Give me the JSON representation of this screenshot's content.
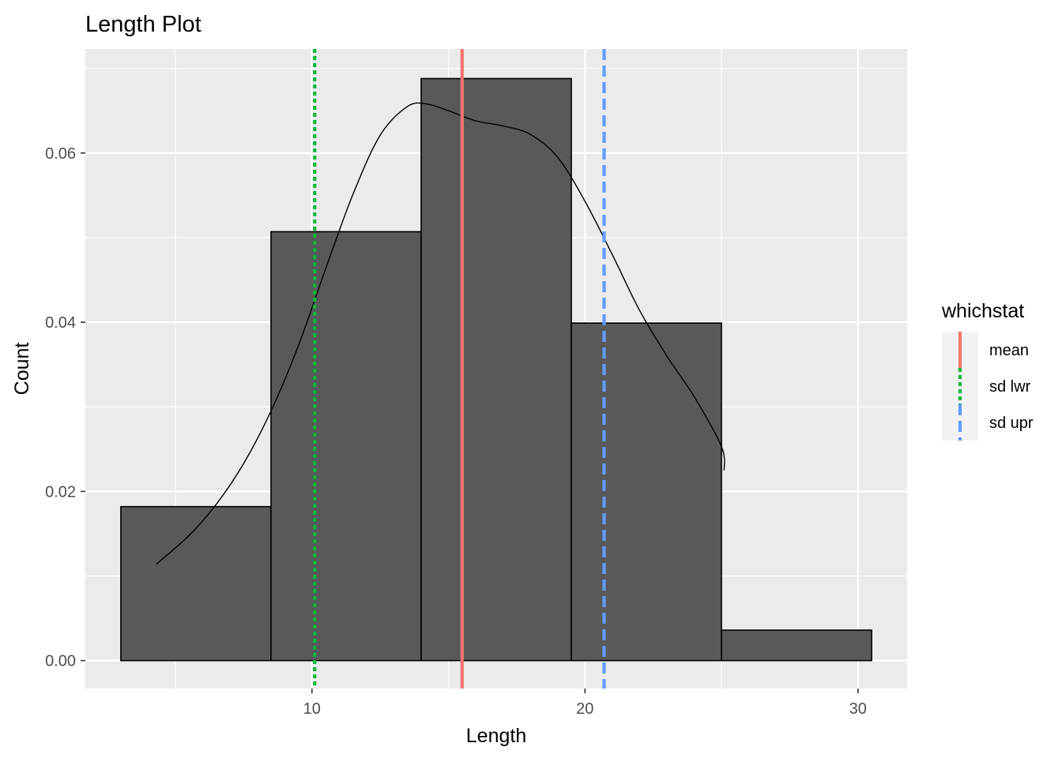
{
  "chart_data": {
    "type": "bar",
    "title": "Length Plot",
    "xlabel": "Length",
    "ylabel": "Count",
    "xlim": [
      1.7,
      31.8
    ],
    "ylim": [
      -0.0033,
      0.0723
    ],
    "x_ticks": [
      10,
      20,
      30
    ],
    "x_tick_labels": [
      "10",
      "20",
      "30"
    ],
    "y_ticks": [
      0.0,
      0.02,
      0.04,
      0.06
    ],
    "y_tick_labels": [
      "0.00",
      "0.02",
      "0.04",
      "0.06"
    ],
    "grid": true,
    "bins": [
      {
        "x0": 3.0,
        "x1": 8.5,
        "value": 0.0182
      },
      {
        "x0": 8.5,
        "x1": 14.0,
        "value": 0.0507
      },
      {
        "x0": 14.0,
        "x1": 19.5,
        "value": 0.0688
      },
      {
        "x0": 19.5,
        "x1": 25.0,
        "value": 0.0399
      },
      {
        "x0": 25.0,
        "x1": 30.5,
        "value": 0.0036
      }
    ],
    "bar_fill": "#595959",
    "bar_stroke": "#000000",
    "density_curve": [
      [
        4.3,
        0.0114
      ],
      [
        5.5,
        0.0148
      ],
      [
        6.5,
        0.0185
      ],
      [
        7.5,
        0.0233
      ],
      [
        8.5,
        0.0295
      ],
      [
        9.5,
        0.0372
      ],
      [
        10.5,
        0.0463
      ],
      [
        11.5,
        0.0551
      ],
      [
        12.5,
        0.0621
      ],
      [
        13.5,
        0.0655
      ],
      [
        14.2,
        0.0658
      ],
      [
        15.0,
        0.065
      ],
      [
        16.0,
        0.0638
      ],
      [
        17.0,
        0.0632
      ],
      [
        18.0,
        0.0622
      ],
      [
        19.0,
        0.0595
      ],
      [
        20.0,
        0.0543
      ],
      [
        21.0,
        0.048
      ],
      [
        22.0,
        0.0414
      ],
      [
        23.0,
        0.036
      ],
      [
        24.0,
        0.0312
      ],
      [
        25.0,
        0.0253
      ],
      [
        25.1,
        0.0225
      ]
    ],
    "vlines": [
      {
        "name": "mean",
        "x": 15.5,
        "color": "#F8766D",
        "dash": "solid"
      },
      {
        "name": "sd lwr",
        "x": 10.1,
        "color": "#00BA38",
        "dash": "dotted"
      },
      {
        "name": "sd upr",
        "x": 20.7,
        "color": "#619CFF",
        "dash": "dashed"
      }
    ],
    "legend": {
      "title": "whichstat",
      "position": "right",
      "items": [
        {
          "label": "mean",
          "color": "#F8766D",
          "dash": "solid"
        },
        {
          "label": "sd lwr",
          "color": "#00BA38",
          "dash": "dotted"
        },
        {
          "label": "sd upr",
          "color": "#619CFF",
          "dash": "dashed"
        }
      ]
    },
    "panel_background": "#EBEBEB",
    "grid_color": "#FFFFFF"
  }
}
